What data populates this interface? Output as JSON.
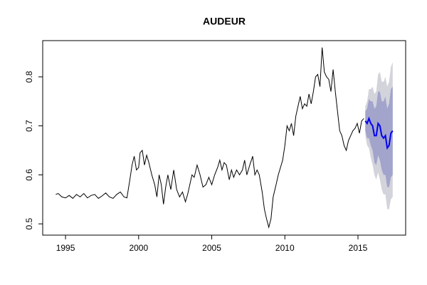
{
  "chart_data": {
    "type": "line",
    "title": "AUDEUR",
    "x": [
      1994.33,
      1994.5,
      1994.75,
      1995.0,
      1995.25,
      1995.5,
      1995.75,
      1996.0,
      1996.25,
      1996.5,
      1996.75,
      1997.0,
      1997.25,
      1997.5,
      1997.75,
      1998.0,
      1998.25,
      1998.5,
      1998.75,
      1999.0,
      1999.2,
      1999.4,
      1999.55,
      1999.7,
      1999.85,
      2000.0,
      2000.1,
      2000.25,
      2000.4,
      2000.55,
      2000.7,
      2000.9,
      2001.1,
      2001.25,
      2001.4,
      2001.55,
      2001.7,
      2001.85,
      2002.0,
      2002.2,
      2002.4,
      2002.6,
      2002.8,
      2003.0,
      2003.2,
      2003.35,
      2003.5,
      2003.65,
      2003.8,
      2004.0,
      2004.2,
      2004.4,
      2004.6,
      2004.8,
      2005.0,
      2005.2,
      2005.4,
      2005.55,
      2005.7,
      2005.85,
      2006.0,
      2006.2,
      2006.35,
      2006.5,
      2006.7,
      2006.9,
      2007.1,
      2007.25,
      2007.4,
      2007.6,
      2007.8,
      2007.95,
      2008.1,
      2008.25,
      2008.45,
      2008.6,
      2008.75,
      2008.9,
      2009.05,
      2009.2,
      2009.4,
      2009.55,
      2009.7,
      2009.85,
      2010.0,
      2010.15,
      2010.3,
      2010.45,
      2010.6,
      2010.75,
      2010.9,
      2011.05,
      2011.2,
      2011.35,
      2011.5,
      2011.65,
      2011.8,
      2011.95,
      2012.1,
      2012.25,
      2012.4,
      2012.55,
      2012.7,
      2012.85,
      2013.0,
      2013.15,
      2013.3,
      2013.45,
      2013.6,
      2013.75,
      2013.9,
      2014.05,
      2014.2,
      2014.35,
      2014.5,
      2014.65,
      2014.8,
      2014.95,
      2015.1,
      2015.25,
      2015.4
    ],
    "values": [
      0.56,
      0.562,
      0.555,
      0.553,
      0.558,
      0.552,
      0.56,
      0.555,
      0.562,
      0.553,
      0.558,
      0.56,
      0.552,
      0.557,
      0.563,
      0.555,
      0.552,
      0.56,
      0.565,
      0.555,
      0.553,
      0.59,
      0.62,
      0.638,
      0.61,
      0.615,
      0.645,
      0.65,
      0.62,
      0.64,
      0.625,
      0.6,
      0.58,
      0.555,
      0.6,
      0.58,
      0.54,
      0.575,
      0.6,
      0.57,
      0.61,
      0.57,
      0.555,
      0.565,
      0.545,
      0.56,
      0.58,
      0.6,
      0.595,
      0.62,
      0.6,
      0.575,
      0.58,
      0.595,
      0.58,
      0.6,
      0.615,
      0.63,
      0.61,
      0.625,
      0.62,
      0.59,
      0.61,
      0.595,
      0.61,
      0.6,
      0.61,
      0.63,
      0.6,
      0.62,
      0.638,
      0.6,
      0.61,
      0.6,
      0.565,
      0.53,
      0.51,
      0.493,
      0.51,
      0.555,
      0.58,
      0.6,
      0.615,
      0.63,
      0.66,
      0.7,
      0.69,
      0.705,
      0.68,
      0.72,
      0.74,
      0.76,
      0.735,
      0.745,
      0.74,
      0.765,
      0.745,
      0.77,
      0.8,
      0.805,
      0.78,
      0.86,
      0.81,
      0.8,
      0.795,
      0.77,
      0.815,
      0.77,
      0.73,
      0.69,
      0.68,
      0.66,
      0.65,
      0.67,
      0.68,
      0.69,
      0.695,
      0.705,
      0.685,
      0.71,
      0.715
    ],
    "color": "#000000",
    "forecast": {
      "x": [
        2015.5,
        2015.625,
        2015.75,
        2015.875,
        2016.0,
        2016.125,
        2016.25,
        2016.375,
        2016.5,
        2016.625,
        2016.75,
        2016.875,
        2017.0,
        2017.125,
        2017.25,
        2017.375
      ],
      "mean": [
        0.71,
        0.705,
        0.715,
        0.705,
        0.7,
        0.68,
        0.68,
        0.705,
        0.7,
        0.68,
        0.675,
        0.68,
        0.655,
        0.66,
        0.685,
        0.69
      ],
      "lo80": [
        0.69,
        0.675,
        0.675,
        0.66,
        0.65,
        0.625,
        0.62,
        0.64,
        0.63,
        0.61,
        0.6,
        0.6,
        0.575,
        0.575,
        0.595,
        0.6
      ],
      "hi80": [
        0.73,
        0.735,
        0.755,
        0.75,
        0.75,
        0.735,
        0.74,
        0.77,
        0.77,
        0.75,
        0.75,
        0.76,
        0.735,
        0.745,
        0.775,
        0.78
      ],
      "lo95": [
        0.68,
        0.66,
        0.655,
        0.635,
        0.62,
        0.6,
        0.59,
        0.605,
        0.59,
        0.57,
        0.56,
        0.56,
        0.53,
        0.53,
        0.55,
        0.555
      ],
      "hi95": [
        0.74,
        0.75,
        0.775,
        0.775,
        0.78,
        0.765,
        0.77,
        0.805,
        0.81,
        0.79,
        0.79,
        0.8,
        0.78,
        0.79,
        0.82,
        0.83
      ],
      "color": "#0000ee",
      "color80": "#a2a4cc",
      "color95": "#d3d3db"
    },
    "xlim": [
      1993.44,
      2018.26
    ],
    "ylim": [
      0.477,
      0.874
    ],
    "xticks": [
      1995,
      2000,
      2005,
      2010,
      2015
    ],
    "yticks": [
      0.5,
      0.6,
      0.7,
      0.8
    ]
  }
}
